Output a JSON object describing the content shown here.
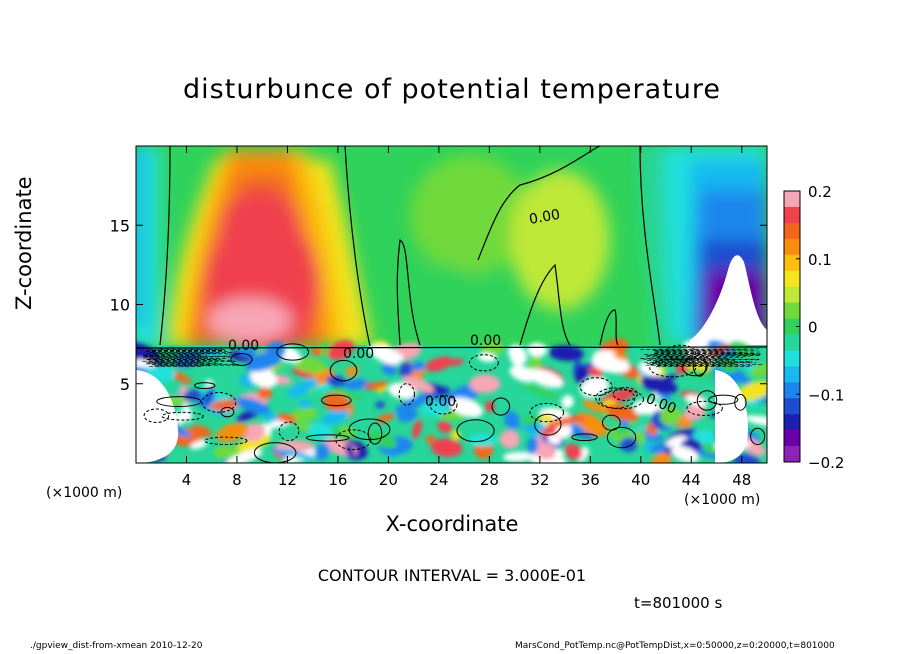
{
  "chart_data": {
    "type": "heatmap",
    "title": "disturbunce of potential temperature",
    "xlabel": "X-coordinate",
    "ylabel": "Z-coordinate",
    "x_unit": "(×1000 m)",
    "xlim": [
      0,
      50
    ],
    "ylim": [
      0,
      20
    ],
    "x_ticks": [
      4,
      8,
      12,
      16,
      20,
      24,
      28,
      32,
      36,
      40,
      44,
      48
    ],
    "y_ticks": [
      5,
      10,
      15
    ],
    "colorbar": {
      "range": [
        -0.2,
        0.2
      ],
      "tick_labels": [
        "0.2",
        "0.1",
        "0",
        "−0.1",
        "−0.2"
      ],
      "tick_values": [
        0.2,
        0.1,
        0,
        -0.1,
        -0.2
      ],
      "colors": [
        "#f7a6b5",
        "#f0414d",
        "#f2661c",
        "#f88d10",
        "#fbbf10",
        "#f2e41f",
        "#bde837",
        "#6fd93a",
        "#2fd25a",
        "#27d69a",
        "#20e0dc",
        "#19b9f0",
        "#1c86ee",
        "#1d4ed0",
        "#1c1fb0",
        "#6b00a8",
        "#8d22b8"
      ]
    },
    "contour_labels": [
      "0.00",
      "0.00",
      "0.00",
      "0.00",
      "0.00",
      "0.00"
    ],
    "contour_interval": "CONTOUR INTERVAL = 3.000E-01",
    "time": "t=801000 s",
    "background": "#2fd25a"
  },
  "footer": {
    "left": "./gpview_dist-from-xmean  2010-12-20",
    "right": "MarsCond_PotTemp.nc@PotTempDist,x=0:50000,z=0:20000,t=801000"
  }
}
